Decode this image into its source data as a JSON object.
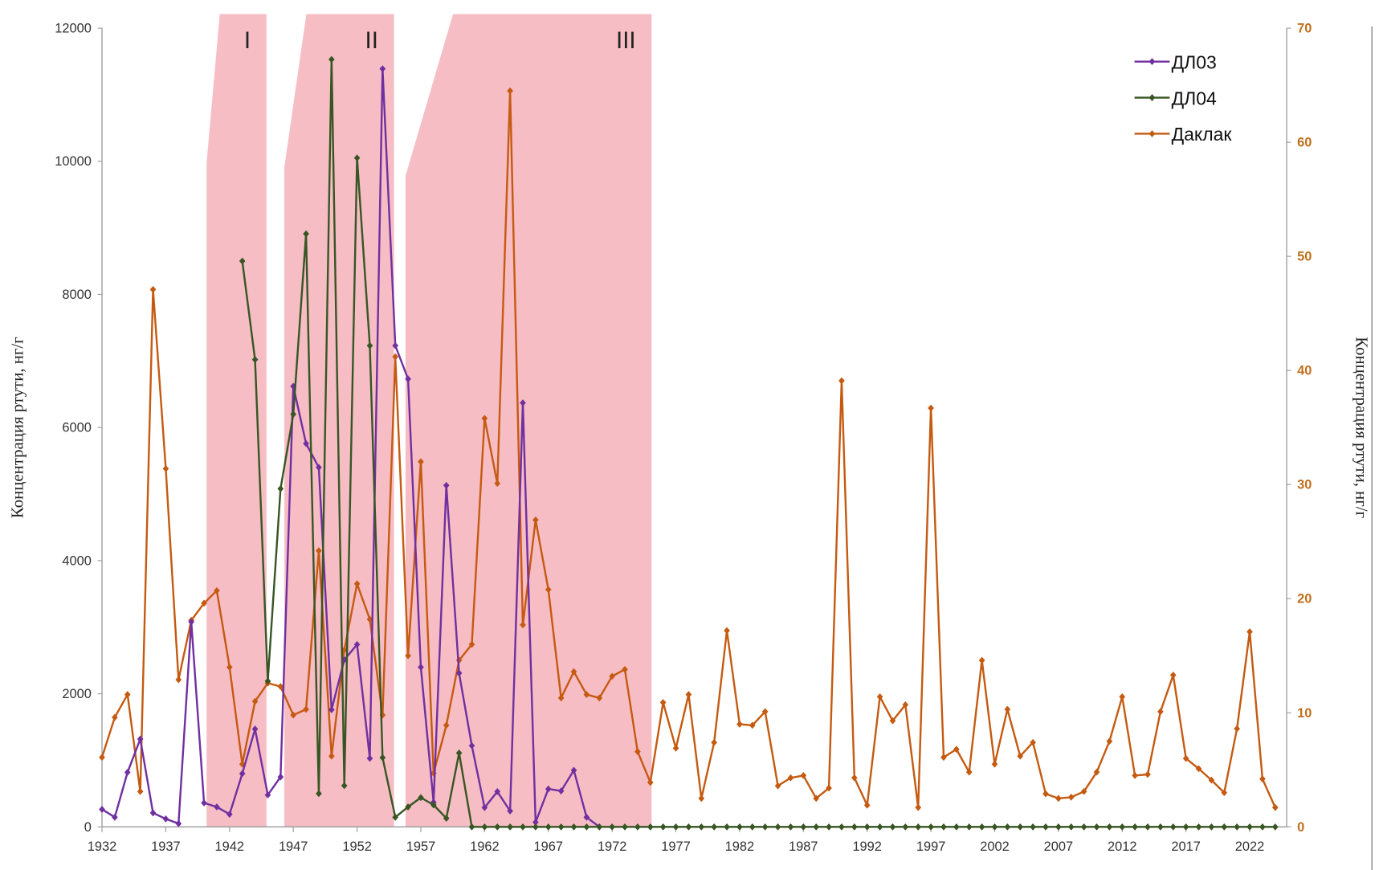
{
  "chart_data": {
    "type": "line",
    "title": "",
    "xlabel": "",
    "ylabel_left": "Концентрация ртути, нг/г",
    "ylabel_right": "Концентрация ртути, нг/г",
    "xlim": [
      1932,
      2024
    ],
    "ylim_left": [
      0,
      12000
    ],
    "ylim_right": [
      0,
      70
    ],
    "x_ticks": [
      1932,
      1937,
      1942,
      1947,
      1952,
      1957,
      1962,
      1967,
      1972,
      1977,
      1982,
      1987,
      1992,
      1997,
      2002,
      2007,
      2012,
      2017,
      2022
    ],
    "y_ticks_left": [
      0,
      2000,
      4000,
      6000,
      8000,
      10000,
      12000
    ],
    "y_ticks_right": [
      0,
      10,
      20,
      30,
      40,
      50,
      60,
      70
    ],
    "grid": false,
    "legend_position": "top-right",
    "bands": [
      {
        "label": "I",
        "x_start": 1940.2,
        "x_end": 1944.9
      },
      {
        "label": "II",
        "x_start": 1946.3,
        "x_end": 1954.9
      },
      {
        "label": "III",
        "x_start": 1955.8,
        "x_end": 1975.1
      }
    ],
    "band_color": "#f7bdc5",
    "series": [
      {
        "name": "ДЛ03",
        "axis": "left",
        "color": "#7030a0",
        "x_start": 1932,
        "values": [
          264,
          145,
          820,
          1320,
          210,
          120,
          50,
          3080,
          360,
          300,
          190,
          800,
          1470,
          480,
          750,
          6620,
          5760,
          5400,
          1760,
          2510,
          2740,
          1030,
          11390,
          7230,
          6730,
          2400,
          370,
          5130,
          2310,
          1220,
          290,
          530,
          240,
          6370,
          70,
          570,
          540,
          850,
          145,
          0
        ]
      },
      {
        "name": "ДЛ04",
        "axis": "left",
        "color": "#375623",
        "x_start": 1943,
        "values": [
          8500,
          7020,
          2190,
          5080,
          6200,
          8910,
          500,
          11530,
          620,
          10050,
          7230,
          1040,
          145,
          300,
          440,
          330,
          130,
          1110,
          0,
          0,
          0,
          0,
          0,
          0,
          0,
          0,
          0,
          0,
          0,
          0,
          0,
          0,
          0,
          0,
          0,
          0,
          0,
          0,
          0,
          0,
          0,
          0,
          0,
          0,
          0,
          0,
          0,
          0,
          0,
          0,
          0,
          0,
          0,
          0,
          0,
          0,
          0,
          0,
          0,
          0,
          0,
          0,
          0,
          0,
          0,
          0,
          0,
          0,
          0,
          0,
          0,
          0,
          0,
          0,
          0,
          0,
          0,
          0,
          0,
          0,
          0,
          0
        ]
      },
      {
        "name": "Даклак",
        "axis": "right",
        "color": "#c55a11",
        "x_start": 1932,
        "values": [
          6.1,
          9.6,
          11.6,
          3.1,
          47.1,
          31.4,
          12.9,
          18.1,
          19.6,
          20.7,
          14.0,
          5.5,
          11.0,
          12.6,
          12.3,
          9.8,
          10.3,
          24.2,
          6.2,
          15.5,
          21.3,
          18.2,
          9.8,
          41.2,
          15.0,
          32.0,
          4.7,
          8.9,
          14.6,
          16.0,
          35.8,
          30.1,
          64.5,
          17.7,
          26.9,
          20.8,
          11.3,
          13.6,
          11.6,
          11.3,
          13.2,
          13.8,
          6.6,
          3.9,
          10.9,
          6.9,
          11.6,
          2.5,
          7.4,
          17.2,
          9.0,
          8.9,
          10.1,
          3.6,
          4.3,
          4.5,
          2.5,
          3.4,
          39.1,
          4.3,
          1.9,
          11.4,
          9.3,
          10.7,
          1.7,
          36.7,
          6.1,
          6.8,
          4.8,
          14.6,
          5.5,
          10.3,
          6.2,
          7.4,
          2.9,
          2.5,
          2.6,
          3.1,
          4.8,
          7.5,
          11.4,
          4.5,
          4.6,
          10.1,
          13.3,
          6.0,
          5.1,
          4.1,
          3.0,
          8.6,
          17.1,
          4.2,
          1.7
        ]
      }
    ]
  }
}
